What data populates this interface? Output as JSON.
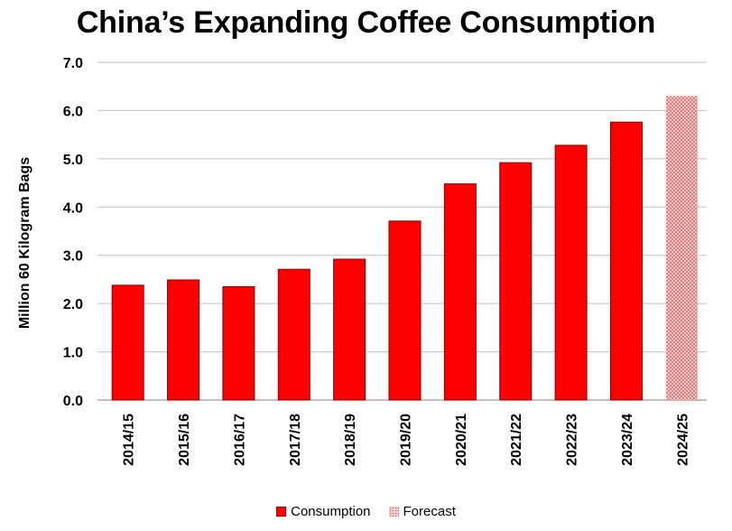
{
  "chart_data": {
    "type": "bar",
    "title": "China’s Expanding Coffee Consumption",
    "ylabel": "Million 60 Kilogram Bags",
    "xlabel": "",
    "ylim": [
      0,
      7
    ],
    "yticks": [
      "0.0",
      "1.0",
      "2.0",
      "3.0",
      "4.0",
      "5.0",
      "6.0",
      "7.0"
    ],
    "grid": true,
    "legend_position": "bottom",
    "categories": [
      "2014/15",
      "2015/16",
      "2016/17",
      "2017/18",
      "2018/19",
      "2019/20",
      "2020/21",
      "2021/22",
      "2022/23",
      "2023/24",
      "2024/25"
    ],
    "values": [
      2.38,
      2.49,
      2.35,
      2.71,
      2.92,
      3.71,
      4.48,
      4.92,
      5.28,
      5.76,
      6.3
    ],
    "bar_kind": [
      "Consumption",
      "Consumption",
      "Consumption",
      "Consumption",
      "Consumption",
      "Consumption",
      "Consumption",
      "Consumption",
      "Consumption",
      "Consumption",
      "Forecast"
    ],
    "legend": [
      {
        "label": "Consumption",
        "style": "solid"
      },
      {
        "label": "Forecast",
        "style": "hatched"
      }
    ],
    "colors": {
      "consumption": "#ff0000",
      "consumption_edge": "#8b0000",
      "forecast": "#f3c9c9",
      "forecast_dots": "#d94444",
      "grid": "#bfbfbf"
    }
  }
}
